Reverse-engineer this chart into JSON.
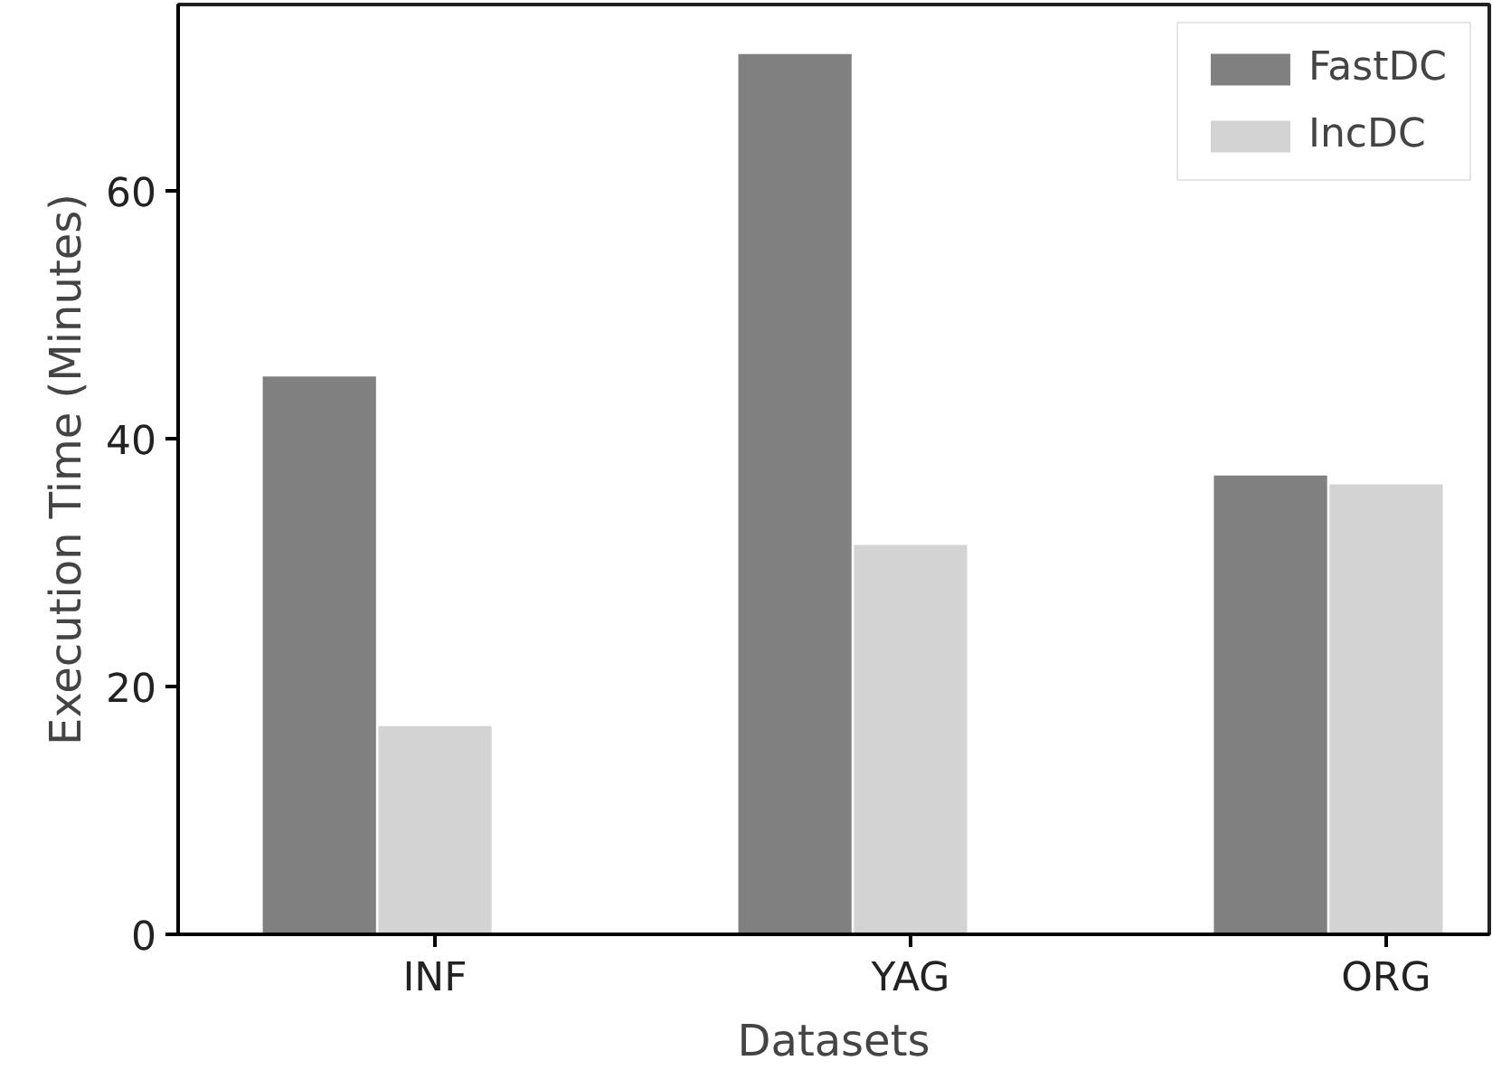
{
  "chart_data": {
    "type": "bar",
    "xlabel": "Datasets",
    "ylabel": "Execution Time (Minutes)",
    "categories": [
      "INF",
      "YAG",
      "ORG"
    ],
    "series": [
      {
        "name": "FastDC",
        "color": "#808080",
        "values": [
          45,
          71,
          37
        ]
      },
      {
        "name": "IncDC",
        "color": "#d3d3d3",
        "values": [
          16.8,
          31.4,
          36.3
        ]
      }
    ],
    "ylim": [
      0,
      75
    ],
    "yticks": [
      0,
      20,
      40,
      60
    ],
    "grid": false,
    "legend": "top right"
  }
}
